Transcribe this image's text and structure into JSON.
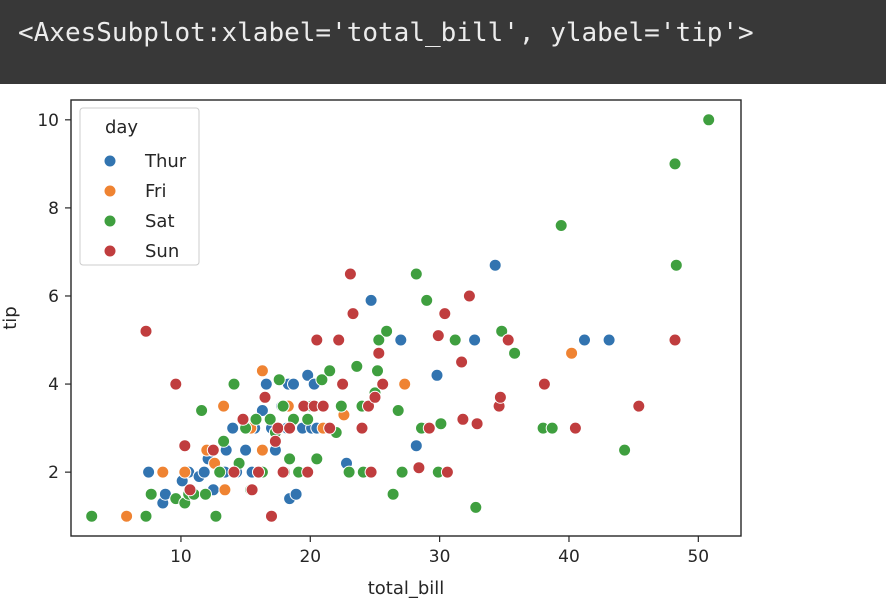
{
  "output": {
    "repr": "<AxesSubplot:xlabel='total_bill', ylabel='tip'>"
  },
  "chart_data": {
    "type": "scatter",
    "xlabel": "total_bill",
    "ylabel": "tip",
    "xlim": [
      1.5,
      53.3
    ],
    "ylim": [
      0.55,
      10.45
    ],
    "xticks": [
      10,
      20,
      30,
      40,
      50
    ],
    "yticks": [
      2,
      4,
      6,
      8,
      10
    ],
    "grid": false,
    "legend": {
      "title": "day",
      "placement": "top-left"
    },
    "series": [
      {
        "name": "Thur",
        "color": "#3274b0",
        "points": [
          [
            7.5,
            2.0
          ],
          [
            8.6,
            1.3
          ],
          [
            8.8,
            1.5
          ],
          [
            10.1,
            1.8
          ],
          [
            10.3,
            1.3
          ],
          [
            10.6,
            2.0
          ],
          [
            11.4,
            1.9
          ],
          [
            11.8,
            2.0
          ],
          [
            12.1,
            2.3
          ],
          [
            12.4,
            2.5
          ],
          [
            12.5,
            1.6
          ],
          [
            13.0,
            2.0
          ],
          [
            13.4,
            2.0
          ],
          [
            13.5,
            2.5
          ],
          [
            14.0,
            3.0
          ],
          [
            14.3,
            2.0
          ],
          [
            15.0,
            2.5
          ],
          [
            15.5,
            2.0
          ],
          [
            15.7,
            3.0
          ],
          [
            16.0,
            2.0
          ],
          [
            16.3,
            3.4
          ],
          [
            16.5,
            3.7
          ],
          [
            16.6,
            4.0
          ],
          [
            17.0,
            3.0
          ],
          [
            17.3,
            2.5
          ],
          [
            17.8,
            3.5
          ],
          [
            18.2,
            3.0
          ],
          [
            18.3,
            4.0
          ],
          [
            18.4,
            1.4
          ],
          [
            18.7,
            4.0
          ],
          [
            18.9,
            1.5
          ],
          [
            19.4,
            3.0
          ],
          [
            19.8,
            4.2
          ],
          [
            20.1,
            3.0
          ],
          [
            20.3,
            4.0
          ],
          [
            20.5,
            3.0
          ],
          [
            22.8,
            2.2
          ],
          [
            24.7,
            5.9
          ],
          [
            27.0,
            5.0
          ],
          [
            28.2,
            2.6
          ],
          [
            29.8,
            4.2
          ],
          [
            32.7,
            5.0
          ],
          [
            34.3,
            6.7
          ],
          [
            34.8,
            5.2
          ],
          [
            41.2,
            5.0
          ],
          [
            43.1,
            5.0
          ]
        ]
      },
      {
        "name": "Fri",
        "color": "#ef8332",
        "points": [
          [
            5.8,
            1.0
          ],
          [
            8.6,
            2.0
          ],
          [
            10.3,
            2.0
          ],
          [
            12.0,
            2.5
          ],
          [
            12.6,
            2.2
          ],
          [
            13.3,
            3.5
          ],
          [
            13.4,
            1.6
          ],
          [
            15.1,
            3.0
          ],
          [
            15.4,
            3.0
          ],
          [
            16.3,
            4.3
          ],
          [
            16.3,
            2.5
          ],
          [
            18.3,
            3.5
          ],
          [
            21.0,
            3.0
          ],
          [
            22.6,
            3.3
          ],
          [
            27.3,
            4.0
          ],
          [
            28.8,
            3.0
          ],
          [
            40.2,
            4.7
          ]
        ]
      },
      {
        "name": "Sat",
        "color": "#3f9f3f",
        "points": [
          [
            3.1,
            1.0
          ],
          [
            7.3,
            1.0
          ],
          [
            7.7,
            1.5
          ],
          [
            9.6,
            1.4
          ],
          [
            10.3,
            1.3
          ],
          [
            10.6,
            1.5
          ],
          [
            11.0,
            1.5
          ],
          [
            11.6,
            3.4
          ],
          [
            11.9,
            1.5
          ],
          [
            12.7,
            1.0
          ],
          [
            13.0,
            2.0
          ],
          [
            13.3,
            2.7
          ],
          [
            14.1,
            4.0
          ],
          [
            14.5,
            2.2
          ],
          [
            15.0,
            3.0
          ],
          [
            15.4,
            1.6
          ],
          [
            15.8,
            3.2
          ],
          [
            16.3,
            2.0
          ],
          [
            16.9,
            3.2
          ],
          [
            17.3,
            2.9
          ],
          [
            17.6,
            4.1
          ],
          [
            17.9,
            3.5
          ],
          [
            18.0,
            2.0
          ],
          [
            18.4,
            2.3
          ],
          [
            18.7,
            3.2
          ],
          [
            19.1,
            2.0
          ],
          [
            19.8,
            3.2
          ],
          [
            20.1,
            3.5
          ],
          [
            20.5,
            2.3
          ],
          [
            20.9,
            4.1
          ],
          [
            21.5,
            4.3
          ],
          [
            22.0,
            2.9
          ],
          [
            22.4,
            3.5
          ],
          [
            23.0,
            2.0
          ],
          [
            23.6,
            4.4
          ],
          [
            24.0,
            3.5
          ],
          [
            24.1,
            2.0
          ],
          [
            25.0,
            3.8
          ],
          [
            25.2,
            4.3
          ],
          [
            25.3,
            5.0
          ],
          [
            25.9,
            5.2
          ],
          [
            26.4,
            1.5
          ],
          [
            26.8,
            3.4
          ],
          [
            27.1,
            2.0
          ],
          [
            28.2,
            6.5
          ],
          [
            28.6,
            3.0
          ],
          [
            29.0,
            5.9
          ],
          [
            29.9,
            2.0
          ],
          [
            30.1,
            3.1
          ],
          [
            31.2,
            5.0
          ],
          [
            32.8,
            1.2
          ],
          [
            34.8,
            5.2
          ],
          [
            35.8,
            4.7
          ],
          [
            38.0,
            3.0
          ],
          [
            38.7,
            3.0
          ],
          [
            39.4,
            7.6
          ],
          [
            44.3,
            2.5
          ],
          [
            48.2,
            9.0
          ],
          [
            48.3,
            6.7
          ],
          [
            50.8,
            10.0
          ]
        ]
      },
      {
        "name": "Sun",
        "color": "#c03d3e",
        "points": [
          [
            7.3,
            5.2
          ],
          [
            9.6,
            4.0
          ],
          [
            10.3,
            2.6
          ],
          [
            10.7,
            1.6
          ],
          [
            12.5,
            2.5
          ],
          [
            14.1,
            2.0
          ],
          [
            14.8,
            3.2
          ],
          [
            15.5,
            1.6
          ],
          [
            16.0,
            2.0
          ],
          [
            16.5,
            3.7
          ],
          [
            17.0,
            1.0
          ],
          [
            17.3,
            2.7
          ],
          [
            17.5,
            3.0
          ],
          [
            17.9,
            2.0
          ],
          [
            18.4,
            3.0
          ],
          [
            19.5,
            3.5
          ],
          [
            19.8,
            2.0
          ],
          [
            20.3,
            3.5
          ],
          [
            20.5,
            5.0
          ],
          [
            21.0,
            3.5
          ],
          [
            21.5,
            3.0
          ],
          [
            22.2,
            5.0
          ],
          [
            22.5,
            4.0
          ],
          [
            23.1,
            6.5
          ],
          [
            23.3,
            5.6
          ],
          [
            24.0,
            3.0
          ],
          [
            24.5,
            3.5
          ],
          [
            24.7,
            2.0
          ],
          [
            25.0,
            3.7
          ],
          [
            25.3,
            4.7
          ],
          [
            25.6,
            4.0
          ],
          [
            28.4,
            2.1
          ],
          [
            29.2,
            3.0
          ],
          [
            29.9,
            5.1
          ],
          [
            30.4,
            5.6
          ],
          [
            30.6,
            2.0
          ],
          [
            31.7,
            4.5
          ],
          [
            31.8,
            3.2
          ],
          [
            32.3,
            6.0
          ],
          [
            32.9,
            3.1
          ],
          [
            34.6,
            3.5
          ],
          [
            34.7,
            3.7
          ],
          [
            35.3,
            5.0
          ],
          [
            38.1,
            4.0
          ],
          [
            40.5,
            3.0
          ],
          [
            45.4,
            3.5
          ],
          [
            48.2,
            5.0
          ]
        ]
      }
    ]
  }
}
